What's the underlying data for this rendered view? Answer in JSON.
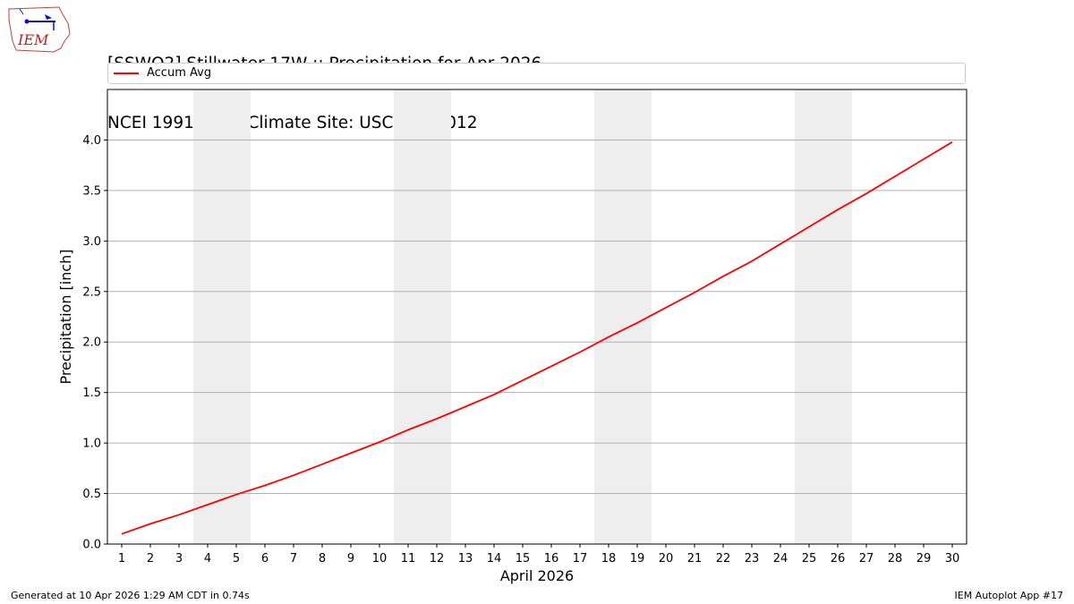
{
  "logo": {
    "text": "IEM"
  },
  "header": {
    "title_line1": "[SSWO2] Stillwater 17W :: Precipitation for Apr 2026",
    "title_line2": "NCEI 1991-2020 Climate Site: USC00347012"
  },
  "chart_data": {
    "type": "line",
    "title": "[SSWO2] Stillwater 17W :: Precipitation for Apr 2026\nNCEI 1991-2020 Climate Site: USC00347012",
    "xlabel": "April 2026",
    "ylabel": "Precipitation [inch]",
    "x": [
      1,
      2,
      3,
      4,
      5,
      6,
      7,
      8,
      9,
      10,
      11,
      12,
      13,
      14,
      15,
      16,
      17,
      18,
      19,
      20,
      21,
      22,
      23,
      24,
      25,
      26,
      27,
      28,
      29,
      30
    ],
    "xticks": [
      "1",
      "2",
      "3",
      "4",
      "5",
      "6",
      "7",
      "8",
      "9",
      "10",
      "11",
      "12",
      "13",
      "14",
      "15",
      "16",
      "17",
      "18",
      "19",
      "20",
      "21",
      "22",
      "23",
      "24",
      "25",
      "26",
      "27",
      "28",
      "29",
      "30"
    ],
    "yticks": [
      "0.0",
      "0.5",
      "1.0",
      "1.5",
      "2.0",
      "2.5",
      "3.0",
      "3.5",
      "4.0"
    ],
    "xlim": [
      0.5,
      30.5
    ],
    "ylim": [
      0.0,
      4.5
    ],
    "grid": "horizontal",
    "weekend_shading": [
      [
        3.5,
        5.5
      ],
      [
        10.5,
        12.5
      ],
      [
        17.5,
        19.5
      ],
      [
        24.5,
        26.5
      ]
    ],
    "legend_position": "top",
    "series": [
      {
        "name": "Accum Avg",
        "color": "#ff0000",
        "values": [
          0.1,
          0.2,
          0.29,
          0.39,
          0.49,
          0.58,
          0.68,
          0.79,
          0.9,
          1.01,
          1.13,
          1.24,
          1.36,
          1.48,
          1.62,
          1.76,
          1.9,
          2.05,
          2.19,
          2.34,
          2.49,
          2.65,
          2.8,
          2.97,
          3.14,
          3.31,
          3.47,
          3.64,
          3.81,
          3.98
        ]
      }
    ]
  },
  "footer": {
    "left": "Generated at 10 Apr 2026 1:29 AM CDT in 0.74s",
    "right": "IEM Autoplot App #17"
  }
}
